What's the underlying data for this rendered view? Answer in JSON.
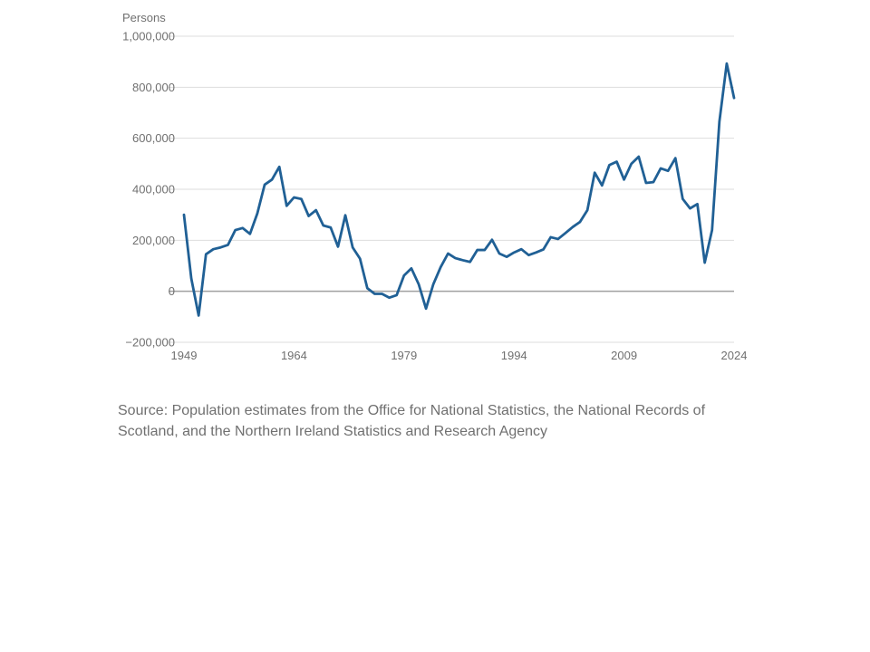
{
  "source_note": "Source: Population estimates from the Office for National Statistics, the National Records of Scotland, and the Northern Ireland Statistics and Research Agency",
  "colors": {
    "line": "#206095",
    "grid": "#dddddd",
    "zero_line": "#a0a0a0",
    "text": "#707070"
  },
  "chart_data": {
    "type": "line",
    "title": "",
    "xlabel": "",
    "ylabel": "Persons",
    "xlim": [
      1949,
      2024
    ],
    "ylim": [
      -200000,
      1000000
    ],
    "grid": true,
    "legend": "none",
    "x_ticks": [
      1949,
      1964,
      1979,
      1994,
      2009,
      2024
    ],
    "y_ticks": [
      -200000,
      0,
      200000,
      400000,
      600000,
      800000,
      1000000
    ],
    "y_tick_labels": [
      "−200,000",
      "0",
      "200,000",
      "400,000",
      "600,000",
      "800,000",
      "1,000,000"
    ],
    "series": [
      {
        "x": [
          1949,
          1950,
          1951,
          1952,
          1953,
          1954,
          1955,
          1956,
          1957,
          1958,
          1959,
          1960,
          1961,
          1962,
          1963,
          1964,
          1965,
          1966,
          1967,
          1968,
          1969,
          1970,
          1971,
          1972,
          1973,
          1974,
          1975,
          1976,
          1977,
          1978,
          1979,
          1980,
          1981,
          1982,
          1983,
          1984,
          1985,
          1986,
          1987,
          1988,
          1989,
          1990,
          1991,
          1992,
          1993,
          1994,
          1995,
          1996,
          1997,
          1998,
          1999,
          2000,
          2001,
          2002,
          2003,
          2004,
          2005,
          2006,
          2007,
          2008,
          2009,
          2010,
          2011,
          2012,
          2013,
          2014,
          2015,
          2016,
          2017,
          2018,
          2019,
          2020,
          2021,
          2022,
          2023,
          2024
        ],
        "values": [
          300000,
          50000,
          -95000,
          145000,
          165000,
          172000,
          182000,
          240000,
          248000,
          225000,
          305000,
          418000,
          438000,
          488000,
          335000,
          368000,
          362000,
          295000,
          318000,
          258000,
          250000,
          175000,
          298000,
          172000,
          128000,
          12000,
          -10000,
          -10000,
          -25000,
          -15000,
          62000,
          90000,
          28000,
          -68000,
          28000,
          95000,
          148000,
          130000,
          122000,
          115000,
          162000,
          162000,
          202000,
          148000,
          135000,
          152000,
          165000,
          142000,
          152000,
          164000,
          212000,
          205000,
          228000,
          252000,
          272000,
          318000,
          465000,
          415000,
          495000,
          508000,
          438000,
          500000,
          528000,
          425000,
          428000,
          482000,
          472000,
          522000,
          362000,
          325000,
          342000,
          112000,
          240000,
          665000,
          893000,
          758000
        ]
      }
    ]
  }
}
